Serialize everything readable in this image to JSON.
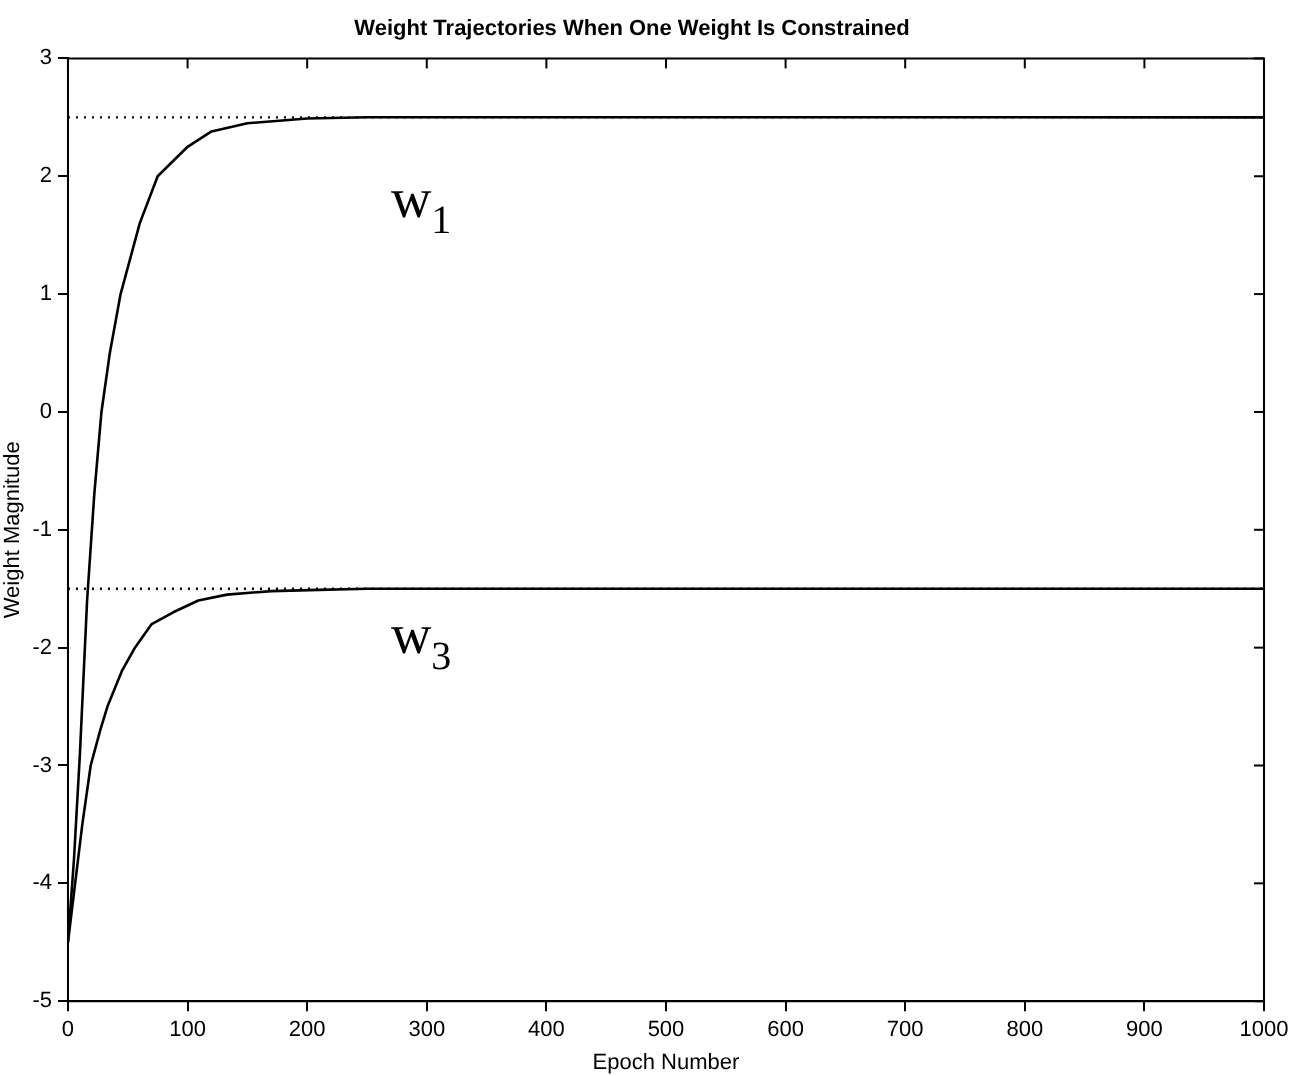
{
  "chart_data": {
    "type": "line",
    "title": "Weight Trajectories When One Weight Is Constrained",
    "xlabel": "Epoch Number",
    "ylabel": "Weight Magnitude",
    "xlim": [
      0,
      1000
    ],
    "xticks": [
      0,
      100,
      200,
      300,
      400,
      500,
      600,
      700,
      800,
      900,
      1000
    ],
    "ylim": [
      -5,
      3
    ],
    "yticks": [
      -5,
      -4,
      -3,
      -2,
      -1,
      0,
      1,
      2,
      3
    ],
    "grid": false,
    "legend": false,
    "marker": "none",
    "line_style": "solid",
    "series": [
      {
        "name": "w$_{1}$",
        "color": "#000000",
        "x": [
          0,
          5,
          10,
          16,
          22,
          28,
          35,
          44,
          60,
          75,
          100,
          120,
          150,
          200,
          250,
          1000
        ],
        "values": [
          -4.5,
          -3.8,
          -2.9,
          -1.6,
          -0.7,
          0,
          0.5,
          1,
          1.6,
          2,
          2.25,
          2.38,
          2.45,
          2.49,
          2.5,
          2.5
        ]
      },
      {
        "name": "w$_{3}$",
        "color": "#000000",
        "x": [
          0,
          6,
          12,
          19,
          27,
          33,
          45,
          56,
          70,
          88,
          109,
          133,
          170,
          210,
          250,
          1000
        ],
        "values": [
          -4.5,
          -4,
          -3.5,
          -3,
          -2.7,
          -2.5,
          -2.2,
          -2,
          -1.8,
          -1.7,
          -1.6,
          -1.55,
          -1.52,
          -1.51,
          -1.5,
          -1.5
        ]
      }
    ],
    "ref_lines": [
      {
        "axis": "y",
        "value": 2.5,
        "line_style": "dotted",
        "color": "#000000"
      },
      {
        "axis": "y",
        "value": -1.5,
        "line_style": "dotted",
        "color": "#000000"
      }
    ]
  }
}
